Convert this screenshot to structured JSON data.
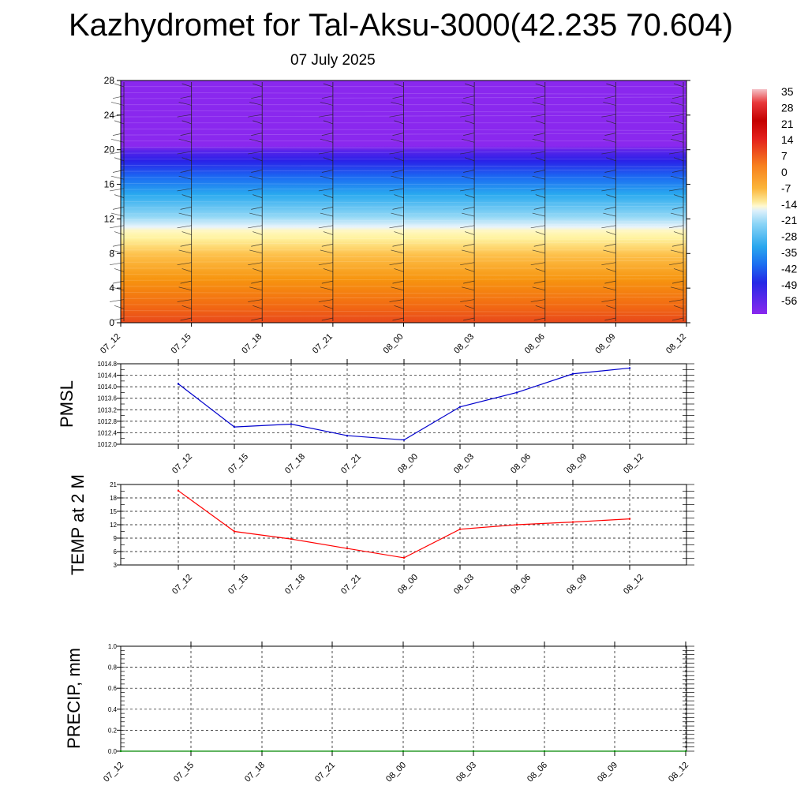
{
  "header": {
    "title": "Kazhydromet for Tal-Aksu-3000(42.235 70.604)",
    "date": "07 July 2025"
  },
  "chart_data": [
    {
      "type": "heatmap",
      "title": "",
      "x_ticks": [
        "07_12",
        "07_15",
        "07_18",
        "07_21",
        "08_00",
        "08_03",
        "08_06",
        "08_09",
        "08_12"
      ],
      "y_ticks": [
        0,
        4,
        8,
        12,
        16,
        20,
        24,
        28
      ],
      "ylim": [
        0,
        28
      ],
      "colorbar_labels": [
        35,
        28,
        21,
        14,
        7,
        0,
        -7,
        -14,
        -21,
        -28,
        -35,
        -42,
        -49,
        -56
      ],
      "colors": {
        "warm_low": "#e8481b",
        "orange": "#f7950f",
        "yellow": "#fff7a8",
        "light_blue": "#8fd6f5",
        "blue": "#1b6bf2",
        "dark_blue": "#2a20e8",
        "violet": "#8a28ee"
      },
      "wind_barbs": true
    },
    {
      "type": "line",
      "ylabel": "PMSL",
      "categories": [
        "07_12",
        "07_15",
        "07_18",
        "07_21",
        "08_00",
        "08_03",
        "08_06",
        "08_09",
        "08_12"
      ],
      "values": [
        1014.1,
        1012.6,
        1012.7,
        1012.3,
        1012.15,
        1013.3,
        1013.8,
        1014.45,
        1014.65
      ],
      "y_ticks": [
        "1012.0",
        "1012.4",
        "1012.8",
        "1013.2",
        "1013.6",
        "1014.0",
        "1014.4",
        "1014.8"
      ],
      "ylim": [
        1012.0,
        1014.8
      ],
      "color": "#0000cc",
      "grid": true
    },
    {
      "type": "line",
      "ylabel": "TEMP at 2 M",
      "categories": [
        "07_12",
        "07_15",
        "07_18",
        "07_21",
        "08_00",
        "08_03",
        "08_06",
        "08_09",
        "08_12"
      ],
      "values": [
        19.6,
        10.5,
        8.8,
        6.7,
        4.6,
        11.0,
        12.0,
        12.6,
        13.3
      ],
      "y_ticks": [
        "3",
        "6",
        "9",
        "12",
        "15",
        "18",
        "21"
      ],
      "ylim": [
        3,
        21
      ],
      "color": "#ff0000",
      "grid": true
    },
    {
      "type": "line",
      "ylabel": "PRECIP, mm",
      "categories": [
        "07_12",
        "07_15",
        "07_18",
        "07_21",
        "08_00",
        "08_03",
        "08_06",
        "08_09",
        "08_12"
      ],
      "values": [
        0,
        0,
        0,
        0,
        0,
        0,
        0,
        0,
        0
      ],
      "y_ticks": [
        "0.0",
        "0.2",
        "0.4",
        "0.6",
        "0.8",
        "1.0"
      ],
      "ylim": [
        0,
        1
      ],
      "color": "#008800",
      "grid": true
    }
  ]
}
